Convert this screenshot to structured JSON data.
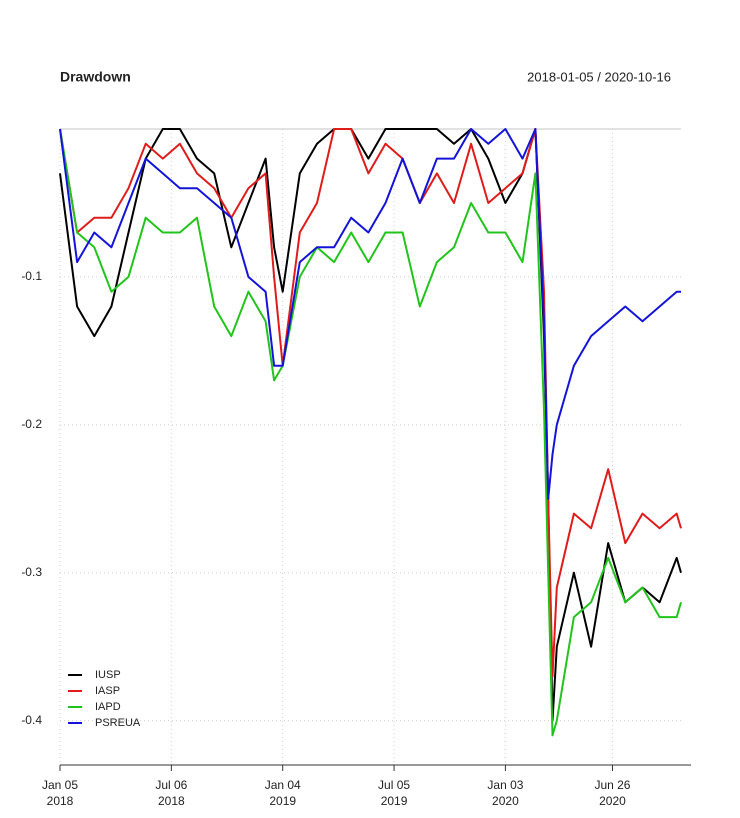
{
  "chart_data": {
    "type": "line",
    "title": "Drawdown",
    "subtitle": "2018-01-05 / 2020-10-16",
    "x": [
      "2018-01-05",
      "2018-02-02",
      "2018-03-02",
      "2018-03-30",
      "2018-04-27",
      "2018-05-25",
      "2018-06-22",
      "2018-07-20",
      "2018-08-17",
      "2018-09-14",
      "2018-10-12",
      "2018-11-09",
      "2018-12-07",
      "2018-12-21",
      "2019-01-04",
      "2019-02-01",
      "2019-03-01",
      "2019-03-29",
      "2019-04-26",
      "2019-05-24",
      "2019-06-21",
      "2019-07-19",
      "2019-08-16",
      "2019-09-13",
      "2019-10-11",
      "2019-11-08",
      "2019-12-06",
      "2020-01-03",
      "2020-01-31",
      "2020-02-21",
      "2020-03-06",
      "2020-03-13",
      "2020-03-20",
      "2020-03-27",
      "2020-04-24",
      "2020-05-22",
      "2020-06-19",
      "2020-07-17",
      "2020-08-14",
      "2020-09-11",
      "2020-10-09",
      "2020-10-16"
    ],
    "series": [
      {
        "name": "IUSP",
        "color": "#000000",
        "values": [
          -0.03,
          -0.12,
          -0.14,
          -0.12,
          -0.07,
          -0.02,
          0,
          0,
          -0.02,
          -0.03,
          -0.08,
          -0.05,
          -0.02,
          -0.08,
          -0.11,
          -0.03,
          -0.01,
          0,
          0,
          -0.02,
          0,
          0,
          0,
          0,
          -0.01,
          0,
          -0.02,
          -0.05,
          -0.03,
          0,
          -0.14,
          -0.25,
          -0.4,
          -0.35,
          -0.3,
          -0.35,
          -0.28,
          -0.32,
          -0.31,
          -0.32,
          -0.29,
          -0.3
        ]
      },
      {
        "name": "IASP",
        "color": "#df1c1c",
        "values": [
          0,
          -0.07,
          -0.06,
          -0.06,
          -0.04,
          -0.01,
          -0.02,
          -0.01,
          -0.03,
          -0.04,
          -0.06,
          -0.04,
          -0.03,
          -0.1,
          -0.16,
          -0.07,
          -0.05,
          0,
          0,
          -0.03,
          -0.01,
          -0.02,
          -0.05,
          -0.03,
          -0.05,
          -0.01,
          -0.05,
          -0.04,
          -0.03,
          0,
          -0.11,
          -0.25,
          -0.37,
          -0.31,
          -0.26,
          -0.27,
          -0.23,
          -0.28,
          -0.26,
          -0.27,
          -0.26,
          -0.27
        ]
      },
      {
        "name": "IAPD",
        "color": "#22c41c",
        "values": [
          0,
          -0.07,
          -0.08,
          -0.11,
          -0.1,
          -0.06,
          -0.07,
          -0.07,
          -0.06,
          -0.12,
          -0.14,
          -0.11,
          -0.13,
          -0.17,
          -0.16,
          -0.1,
          -0.08,
          -0.09,
          -0.07,
          -0.09,
          -0.07,
          -0.07,
          -0.12,
          -0.09,
          -0.08,
          -0.05,
          -0.07,
          -0.07,
          -0.09,
          -0.03,
          -0.19,
          -0.3,
          -0.41,
          -0.4,
          -0.33,
          -0.32,
          -0.29,
          -0.32,
          -0.31,
          -0.33,
          -0.33,
          -0.32
        ]
      },
      {
        "name": "PSREUA",
        "color": "#1414d8",
        "values": [
          0,
          -0.09,
          -0.07,
          -0.08,
          -0.05,
          -0.02,
          -0.03,
          -0.04,
          -0.04,
          -0.05,
          -0.06,
          -0.1,
          -0.11,
          -0.16,
          -0.16,
          -0.09,
          -0.08,
          -0.08,
          -0.06,
          -0.07,
          -0.05,
          -0.02,
          -0.05,
          -0.02,
          -0.02,
          0,
          -0.01,
          0,
          -0.02,
          0,
          -0.13,
          -0.25,
          -0.22,
          -0.2,
          -0.16,
          -0.14,
          -0.13,
          -0.12,
          -0.13,
          -0.12,
          -0.11,
          -0.11
        ]
      }
    ],
    "xlim": [
      "2018-01-05",
      "2020-10-16"
    ],
    "xticks": [
      {
        "value": "2018-01-05",
        "label": [
          "Jan 05",
          "2018"
        ]
      },
      {
        "value": "2018-07-06",
        "label": [
          "Jul 06",
          "2018"
        ]
      },
      {
        "value": "2019-01-04",
        "label": [
          "Jan 04",
          "2019"
        ]
      },
      {
        "value": "2019-07-05",
        "label": [
          "Jul 05",
          "2019"
        ]
      },
      {
        "value": "2020-01-03",
        "label": [
          "Jan 03",
          "2020"
        ]
      },
      {
        "value": "2020-06-26",
        "label": [
          "Jun 26",
          "2020"
        ]
      }
    ],
    "ylim": [
      -0.43,
      0
    ],
    "yticks": [
      -0.4,
      -0.3,
      -0.2,
      -0.1
    ],
    "grid": true,
    "legend": "bottom-left"
  }
}
